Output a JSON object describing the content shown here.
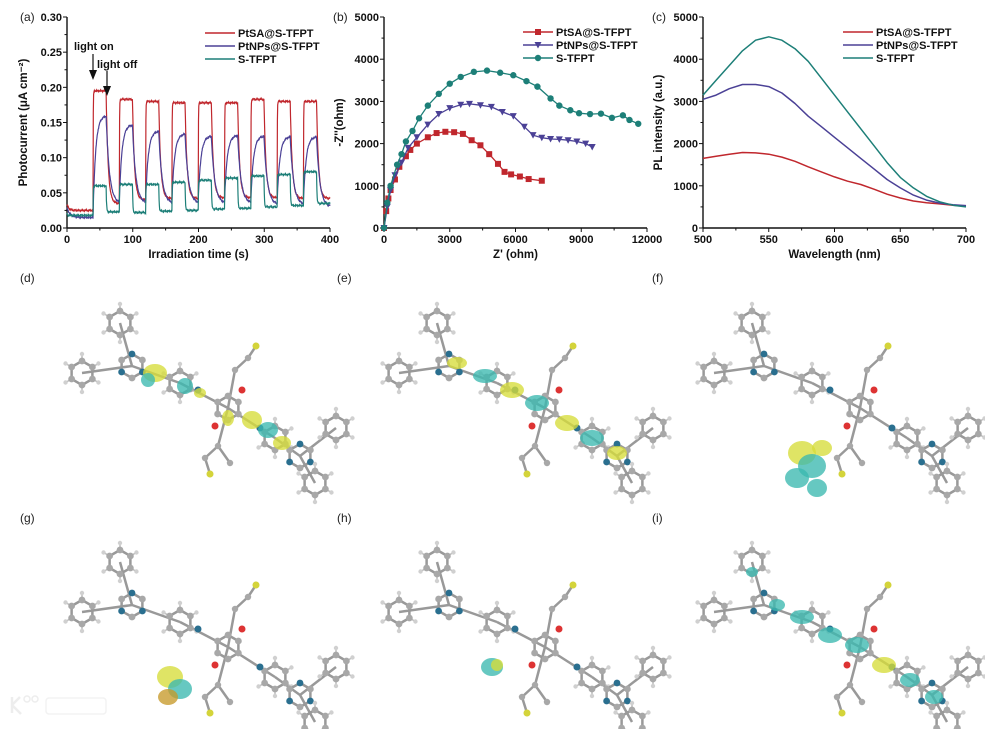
{
  "colors": {
    "PtSA": "#c0272d",
    "PtNPs": "#4b4196",
    "STFPT": "#1d7f78",
    "blob_yellow": "#d6dc3a",
    "blob_cyan": "#3bb8b0"
  },
  "panel_labels": [
    "(a)",
    "(b)",
    "(c)",
    "(d)",
    "(e)",
    "(f)",
    "(g)",
    "(h)",
    "(i)"
  ],
  "watermark": "大数跨境",
  "chart_data": [
    {
      "type": "line",
      "panel": "(a)",
      "xlabel": "Irradiation time (s)",
      "ylabel": "Photocurrent (μA cm⁻²)",
      "xlim": [
        0,
        400
      ],
      "ylim": [
        0,
        0.3
      ],
      "xticks": [
        "0",
        "100",
        "200",
        "300",
        "400"
      ],
      "yticks": [
        "0.00",
        "0.05",
        "0.10",
        "0.15",
        "0.20",
        "0.25",
        "0.30"
      ],
      "annotations": [
        "light on",
        "light off"
      ],
      "light_on_periods_s": [
        [
          40,
          60
        ],
        [
          80,
          100
        ],
        [
          120,
          140
        ],
        [
          160,
          180
        ],
        [
          200,
          220
        ],
        [
          240,
          260
        ],
        [
          280,
          300
        ],
        [
          320,
          340
        ],
        [
          360,
          380
        ]
      ],
      "legend_position": "top-right",
      "series": [
        {
          "name": "PtSA@S-TFPT",
          "color": "#c0272d",
          "start": 0.035,
          "on_levels": [
            0.195,
            0.183,
            0.18,
            0.178,
            0.178,
            0.178,
            0.183,
            0.18,
            0.18
          ],
          "off_levels": [
            0.025,
            0.035,
            0.04,
            0.042,
            0.042,
            0.043,
            0.043,
            0.043,
            0.042,
            0.042
          ]
        },
        {
          "name": "PtNPs@S-TFPT",
          "color": "#4b4196",
          "start": 0.03,
          "on_levels": [
            0.16,
            0.147,
            0.138,
            0.134,
            0.131,
            0.132,
            0.131,
            0.13,
            0.13
          ],
          "off_levels": [
            0.015,
            0.035,
            0.035,
            0.035,
            0.035,
            0.035,
            0.035,
            0.033,
            0.033,
            0.03
          ]
        },
        {
          "name": "S-TFPT",
          "color": "#1d7f78",
          "start": 0.025,
          "on_levels": [
            0.06,
            0.062,
            0.062,
            0.065,
            0.068,
            0.071,
            0.074,
            0.076,
            0.08
          ],
          "off_levels": [
            0.018,
            0.023,
            0.022,
            0.024,
            0.025,
            0.027,
            0.028,
            0.03,
            0.032,
            0.035
          ]
        }
      ]
    },
    {
      "type": "scatter",
      "panel": "(b)",
      "xlabel": "Z' (ohm)",
      "ylabel": "-Z''(ohm)",
      "xlim": [
        0,
        12000
      ],
      "ylim": [
        0,
        5000
      ],
      "xticks": [
        "0",
        "3000",
        "6000",
        "9000",
        "12000"
      ],
      "yticks": [
        "0",
        "1000",
        "2000",
        "3000",
        "4000",
        "5000"
      ],
      "legend_position": "top-right",
      "series": [
        {
          "name": "PtSA@S-TFPT",
          "color": "#c0272d",
          "marker": "square",
          "points": [
            [
              0,
              0
            ],
            [
              100,
              400
            ],
            [
              200,
              700
            ],
            [
              300,
              900
            ],
            [
              500,
              1150
            ],
            [
              700,
              1450
            ],
            [
              1000,
              1700
            ],
            [
              1200,
              1850
            ],
            [
              1500,
              2000
            ],
            [
              2000,
              2150
            ],
            [
              2400,
              2250
            ],
            [
              2800,
              2280
            ],
            [
              3200,
              2270
            ],
            [
              3600,
              2230
            ],
            [
              4000,
              2080
            ],
            [
              4400,
              1960
            ],
            [
              4800,
              1750
            ],
            [
              5200,
              1520
            ],
            [
              5500,
              1330
            ],
            [
              5800,
              1270
            ],
            [
              6200,
              1220
            ],
            [
              6600,
              1160
            ],
            [
              7200,
              1120
            ]
          ]
        },
        {
          "name": "PtNPs@S-TFPT",
          "color": "#4b4196",
          "marker": "triangle-down",
          "points": [
            [
              0,
              0
            ],
            [
              150,
              500
            ],
            [
              300,
              900
            ],
            [
              500,
              1250
            ],
            [
              800,
              1550
            ],
            [
              1100,
              1900
            ],
            [
              1500,
              2150
            ],
            [
              2000,
              2450
            ],
            [
              2500,
              2700
            ],
            [
              3000,
              2840
            ],
            [
              3500,
              2920
            ],
            [
              3900,
              2940
            ],
            [
              4400,
              2910
            ],
            [
              4900,
              2870
            ],
            [
              5400,
              2750
            ],
            [
              5900,
              2650
            ],
            [
              6400,
              2400
            ],
            [
              6800,
              2200
            ],
            [
              7200,
              2140
            ],
            [
              7600,
              2110
            ],
            [
              8000,
              2100
            ],
            [
              8400,
              2080
            ],
            [
              8800,
              2050
            ],
            [
              9200,
              2000
            ],
            [
              9500,
              1920
            ]
          ]
        },
        {
          "name": "S-TFPT",
          "color": "#1d7f78",
          "marker": "circle",
          "points": [
            [
              0,
              0
            ],
            [
              150,
              600
            ],
            [
              300,
              1000
            ],
            [
              600,
              1500
            ],
            [
              800,
              1750
            ],
            [
              1000,
              2050
            ],
            [
              1300,
              2300
            ],
            [
              1600,
              2600
            ],
            [
              2000,
              2900
            ],
            [
              2500,
              3180
            ],
            [
              3000,
              3420
            ],
            [
              3500,
              3580
            ],
            [
              4100,
              3700
            ],
            [
              4700,
              3730
            ],
            [
              5300,
              3680
            ],
            [
              5900,
              3620
            ],
            [
              6500,
              3480
            ],
            [
              7000,
              3350
            ],
            [
              7600,
              3070
            ],
            [
              8000,
              2900
            ],
            [
              8500,
              2790
            ],
            [
              8900,
              2720
            ],
            [
              9400,
              2700
            ],
            [
              9900,
              2710
            ],
            [
              10400,
              2610
            ],
            [
              10900,
              2670
            ],
            [
              11200,
              2560
            ],
            [
              11600,
              2470
            ]
          ]
        }
      ]
    },
    {
      "type": "line",
      "panel": "(c)",
      "xlabel": "Wavelength (nm)",
      "ylabel": "PL intensity (a.u.)",
      "xlim": [
        500,
        700
      ],
      "ylim": [
        0,
        5000
      ],
      "xticks": [
        "500",
        "550",
        "600",
        "650",
        "700"
      ],
      "yticks": [
        "0",
        "1000",
        "2000",
        "3000",
        "4000",
        "5000"
      ],
      "legend_position": "top-right",
      "x": [
        500,
        510,
        520,
        530,
        540,
        550,
        560,
        570,
        580,
        590,
        600,
        610,
        620,
        630,
        640,
        650,
        660,
        670,
        680,
        690,
        700
      ],
      "series": [
        {
          "name": "PtSA@S-TFPT",
          "color": "#c0272d",
          "values": [
            1650,
            1700,
            1750,
            1790,
            1780,
            1750,
            1680,
            1580,
            1450,
            1330,
            1210,
            1110,
            1030,
            920,
            800,
            710,
            640,
            600,
            570,
            540,
            520
          ]
        },
        {
          "name": "PtNPs@S-TFPT",
          "color": "#4b4196",
          "values": [
            3050,
            3150,
            3300,
            3400,
            3400,
            3350,
            3200,
            2950,
            2650,
            2400,
            2150,
            1900,
            1650,
            1400,
            1150,
            950,
            780,
            660,
            590,
            550,
            530
          ]
        },
        {
          "name": "S-TFPT",
          "color": "#1d7f78",
          "values": [
            3150,
            3500,
            3850,
            4200,
            4450,
            4530,
            4450,
            4250,
            3950,
            3550,
            3150,
            2750,
            2350,
            1950,
            1550,
            1200,
            950,
            750,
            620,
            540,
            500
          ]
        }
      ]
    }
  ]
}
